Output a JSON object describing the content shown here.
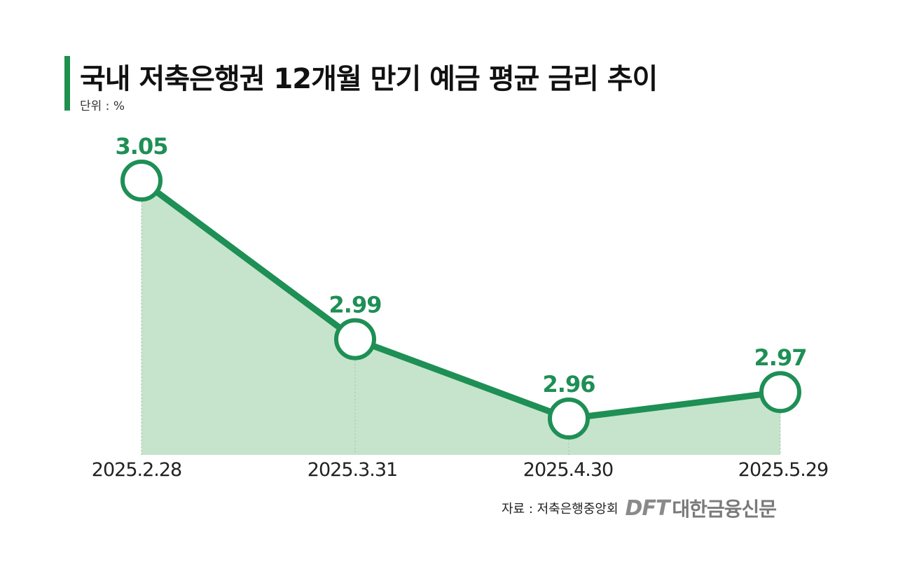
{
  "header": {
    "title": "국내 저축은행권 12개월 만기 예금 평균 금리 추이",
    "unit": "단위 : %"
  },
  "footer": {
    "source": "자료 : 저축은행중앙회",
    "logo_mark": "DFT",
    "logo_name": "대한금융신문"
  },
  "colors": {
    "accent": "#1f8f4e",
    "line": "#1e8f55",
    "fill": "#c5e4cb"
  },
  "chart_data": {
    "type": "area",
    "categories": [
      "2025.2.28",
      "2025.3.31",
      "2025.4.30",
      "2025.5.29"
    ],
    "values": [
      3.05,
      2.99,
      2.96,
      2.97
    ],
    "data_labels": [
      "3.05",
      "2.99",
      "2.96",
      "2.97"
    ],
    "title": "국내 저축은행권 12개월 만기 예금 평균 금리 추이",
    "ylabel": "",
    "xlabel": "",
    "grid": false,
    "legend": "none"
  }
}
